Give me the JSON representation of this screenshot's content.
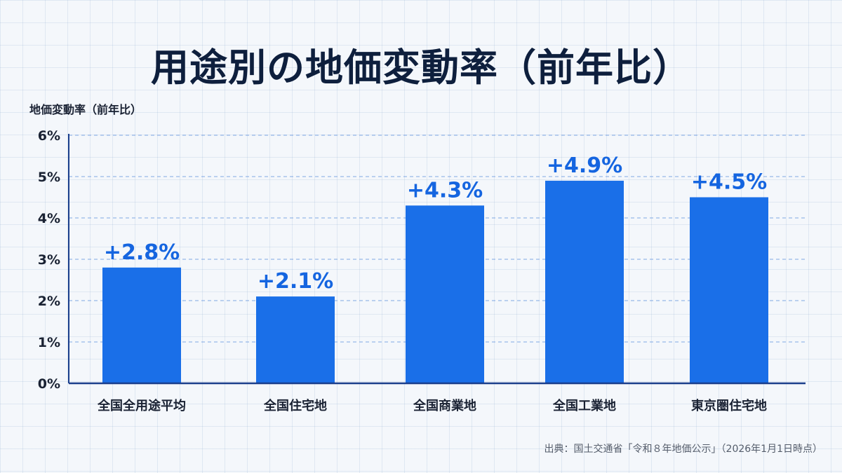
{
  "title": "用途別の地価変動率（前年比）",
  "source": "出典：国土交通省「令和８年地価公示」（2026年1月1日時点）",
  "colors": {
    "bar": "#1a6fe8",
    "label": "#1565e0",
    "axis": "#1a3e8c",
    "gridline": "#5b8fdc",
    "title": "#0e1f3d"
  },
  "chart_data": {
    "type": "bar",
    "title": "用途別の地価変動率（前年比）",
    "xlabel": "",
    "ylabel": "地価変動率（前年比）",
    "ylim": [
      0,
      6
    ],
    "yticks": [
      0,
      1,
      2,
      3,
      4,
      5,
      6
    ],
    "ytick_labels": [
      "0%",
      "1%",
      "2%",
      "3%",
      "4%",
      "5%",
      "6%"
    ],
    "grid": "horizontal-dashed",
    "legend": "none",
    "categories": [
      "全国全用途平均",
      "全国住宅地",
      "全国商業地",
      "全国工業地",
      "東京圏住宅地"
    ],
    "values": [
      2.8,
      2.1,
      4.3,
      4.9,
      4.5
    ],
    "data_labels": [
      "+2.8%",
      "+2.1%",
      "+4.3%",
      "+4.9%",
      "+4.5%"
    ]
  }
}
